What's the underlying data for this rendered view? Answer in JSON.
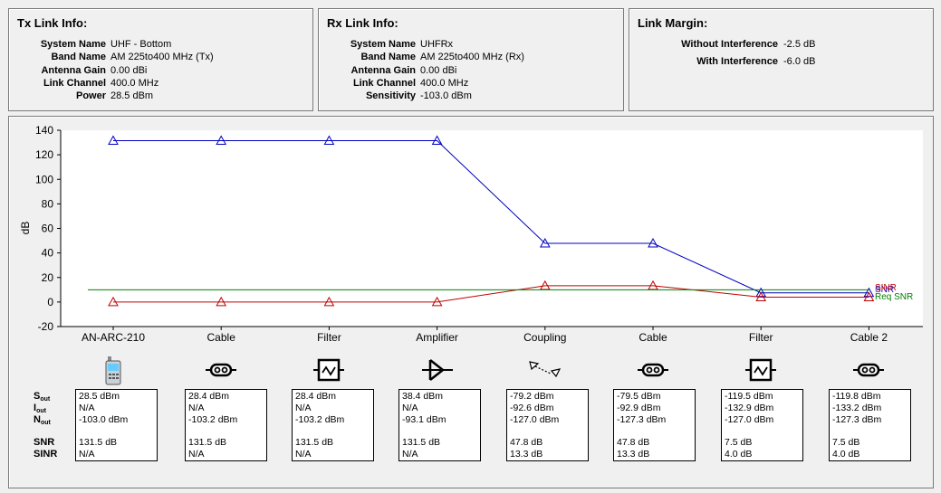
{
  "tx": {
    "title": "Tx Link Info:",
    "rows": [
      {
        "label": "System Name",
        "value": "UHF - Bottom"
      },
      {
        "label": "Band Name",
        "value": "AM 225to400 MHz (Tx)"
      },
      {
        "label": "Antenna Gain",
        "value": "0.00 dBi"
      },
      {
        "label": "Link Channel",
        "value": "400.0 MHz"
      },
      {
        "label": "Power",
        "value": "28.5 dBm"
      }
    ]
  },
  "rx": {
    "title": "Rx Link Info:",
    "rows": [
      {
        "label": "System Name",
        "value": "UHFRx"
      },
      {
        "label": "Band Name",
        "value": "AM 225to400 MHz (Rx)"
      },
      {
        "label": "Antenna Gain",
        "value": "0.00 dBi"
      },
      {
        "label": "Link Channel",
        "value": "400.0 MHz"
      },
      {
        "label": "Sensitivity",
        "value": "-103.0 dBm"
      }
    ]
  },
  "margin": {
    "title": "Link Margin:",
    "rows": [
      {
        "label": "Without Interference",
        "value": "-2.5 dB"
      },
      {
        "label": "With Interference",
        "value": "-6.0 dB"
      }
    ]
  },
  "stat_labels": {
    "s": "S",
    "s_sub": "out",
    "i": "I",
    "i_sub": "out",
    "n": "N",
    "n_sub": "out",
    "snr": "SNR",
    "sinr": "SINR"
  },
  "components": [
    {
      "name": "AN-ARC-210",
      "icon": "radio-handset-icon",
      "sout": "28.5 dBm",
      "iout": "N/A",
      "nout": "-103.0 dBm",
      "snr": "131.5 dB",
      "sinr": "N/A"
    },
    {
      "name": "Cable",
      "icon": "cable-icon",
      "sout": "28.4 dBm",
      "iout": "N/A",
      "nout": "-103.2 dBm",
      "snr": "131.5 dB",
      "sinr": "N/A"
    },
    {
      "name": "Filter",
      "icon": "filter-icon",
      "sout": "28.4 dBm",
      "iout": "N/A",
      "nout": "-103.2 dBm",
      "snr": "131.5 dB",
      "sinr": "N/A"
    },
    {
      "name": "Amplifier",
      "icon": "amplifier-icon",
      "sout": "38.4 dBm",
      "iout": "N/A",
      "nout": "-93.1 dBm",
      "snr": "131.5 dB",
      "sinr": "N/A"
    },
    {
      "name": "Coupling",
      "icon": "coupling-icon",
      "sout": "-79.2 dBm",
      "iout": "-92.6 dBm",
      "nout": "-127.0 dBm",
      "snr": "47.8 dB",
      "sinr": "13.3 dB"
    },
    {
      "name": "Cable",
      "icon": "cable-icon",
      "sout": "-79.5 dBm",
      "iout": "-92.9 dBm",
      "nout": "-127.3 dBm",
      "snr": "47.8 dB",
      "sinr": "13.3 dB"
    },
    {
      "name": "Filter",
      "icon": "filter-icon",
      "sout": "-119.5 dBm",
      "iout": "-132.9 dBm",
      "nout": "-127.0 dBm",
      "snr": "7.5 dB",
      "sinr": "4.0 dB"
    },
    {
      "name": "Cable 2",
      "icon": "cable-icon",
      "sout": "-119.8 dBm",
      "iout": "-133.2 dBm",
      "nout": "-127.3 dBm",
      "snr": "7.5 dB",
      "sinr": "4.0 dB"
    }
  ],
  "chart_data": {
    "type": "line",
    "ylabel": "dB",
    "ylim": [
      -20,
      140
    ],
    "yticks": [
      140,
      120,
      100,
      80,
      60,
      40,
      20,
      0,
      -20
    ],
    "categories": [
      "AN-ARC-210",
      "Cable",
      "Filter",
      "Amplifier",
      "Coupling",
      "Cable",
      "Filter",
      "Cable 2"
    ],
    "grid": false,
    "series": [
      {
        "name": "SNR",
        "color": "#0000c0",
        "marker": "triangle",
        "values": [
          131.5,
          131.5,
          131.5,
          131.5,
          47.8,
          47.8,
          7.5,
          7.5
        ]
      },
      {
        "name": "SINR",
        "color": "#c00000",
        "marker": "triangle",
        "values": [
          0,
          0,
          0,
          0,
          13.3,
          13.3,
          4.0,
          4.0
        ]
      },
      {
        "name": "Req SNR",
        "color": "#008000",
        "marker": "none",
        "values": [
          10,
          10,
          10,
          10,
          10,
          10,
          10,
          10
        ]
      }
    ]
  }
}
